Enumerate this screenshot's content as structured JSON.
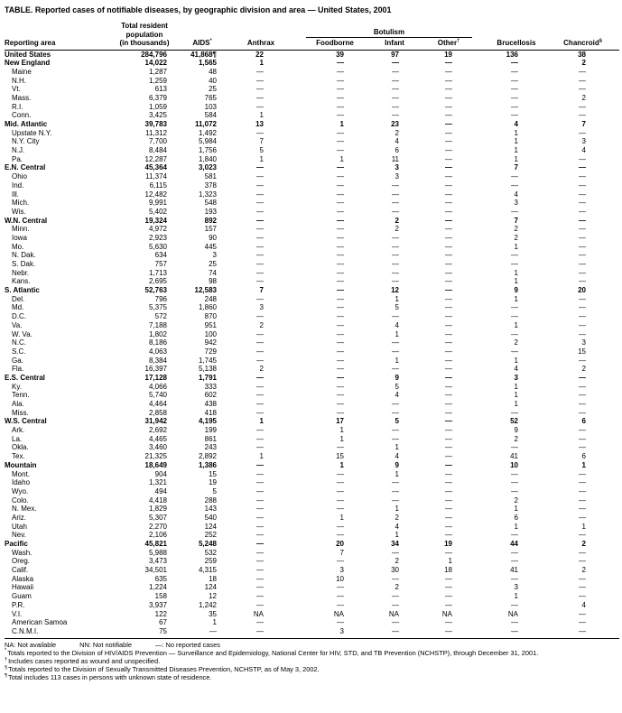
{
  "title": "TABLE. Reported cases of notifiable diseases, by geographic division and area — United States, 2001",
  "table": {
    "headers": {
      "reporting_area": "Reporting area",
      "population_line1": "Total resident",
      "population_line2": "population",
      "population_line3": "(in thousands)",
      "aids": "AIDS",
      "aids_marker": "*",
      "anthrax": "Anthrax",
      "botulism": "Botulism",
      "foodborne": "Foodborne",
      "infant": "Infant",
      "other": "Other",
      "other_marker": "†",
      "brucellosis": "Brucellosis",
      "chancroid": "Chancroid",
      "chancroid_marker": "§"
    },
    "rows": [
      {
        "area": "United States",
        "level": "us",
        "values": [
          "284,796",
          "41,868¶",
          "22",
          "39",
          "97",
          "19",
          "136",
          "38"
        ]
      },
      {
        "area": "New England",
        "level": "division",
        "values": [
          "14,022",
          "1,565",
          "1",
          "—",
          "—",
          "—",
          "—",
          "2"
        ]
      },
      {
        "area": "Maine",
        "level": "state",
        "values": [
          "1,287",
          "48",
          "—",
          "—",
          "—",
          "—",
          "—",
          "—"
        ]
      },
      {
        "area": "N.H.",
        "level": "state",
        "values": [
          "1,259",
          "40",
          "—",
          "—",
          "—",
          "—",
          "—",
          "—"
        ]
      },
      {
        "area": "Vt.",
        "level": "state",
        "values": [
          "613",
          "25",
          "—",
          "—",
          "—",
          "—",
          "—",
          "—"
        ]
      },
      {
        "area": "Mass.",
        "level": "state",
        "values": [
          "6,379",
          "765",
          "—",
          "—",
          "—",
          "—",
          "—",
          "2"
        ]
      },
      {
        "area": "R.I.",
        "level": "state",
        "values": [
          "1,059",
          "103",
          "—",
          "—",
          "—",
          "—",
          "—",
          "—"
        ]
      },
      {
        "area": "Conn.",
        "level": "state",
        "values": [
          "3,425",
          "584",
          "1",
          "—",
          "—",
          "—",
          "—",
          "—"
        ]
      },
      {
        "area": "Mid. Atlantic",
        "level": "division",
        "values": [
          "39,783",
          "11,072",
          "13",
          "1",
          "23",
          "—",
          "4",
          "7"
        ]
      },
      {
        "area": "Upstate N.Y.",
        "level": "state",
        "values": [
          "11,312",
          "1,492",
          "—",
          "—",
          "2",
          "—",
          "1",
          "—"
        ]
      },
      {
        "area": "N.Y. City",
        "level": "state",
        "values": [
          "7,700",
          "5,984",
          "7",
          "—",
          "4",
          "—",
          "1",
          "3"
        ]
      },
      {
        "area": "N.J.",
        "level": "state",
        "values": [
          "8,484",
          "1,756",
          "5",
          "—",
          "6",
          "—",
          "1",
          "4"
        ]
      },
      {
        "area": "Pa.",
        "level": "state",
        "values": [
          "12,287",
          "1,840",
          "1",
          "1",
          "11",
          "—",
          "1",
          "—"
        ]
      },
      {
        "area": "E.N. Central",
        "level": "division",
        "values": [
          "45,364",
          "3,023",
          "—",
          "—",
          "3",
          "—",
          "7",
          "—"
        ]
      },
      {
        "area": "Ohio",
        "level": "state",
        "values": [
          "11,374",
          "581",
          "—",
          "—",
          "3",
          "—",
          "—",
          "—"
        ]
      },
      {
        "area": "Ind.",
        "level": "state",
        "values": [
          "6,115",
          "378",
          "—",
          "—",
          "—",
          "—",
          "—",
          "—"
        ]
      },
      {
        "area": "Ill.",
        "level": "state",
        "values": [
          "12,482",
          "1,323",
          "—",
          "—",
          "—",
          "—",
          "4",
          "—"
        ]
      },
      {
        "area": "Mich.",
        "level": "state",
        "values": [
          "9,991",
          "548",
          "—",
          "—",
          "—",
          "—",
          "3",
          "—"
        ]
      },
      {
        "area": "Wis.",
        "level": "state",
        "values": [
          "5,402",
          "193",
          "—",
          "—",
          "—",
          "—",
          "—",
          "—"
        ]
      },
      {
        "area": "W.N. Central",
        "level": "division",
        "values": [
          "19,324",
          "892",
          "—",
          "—",
          "2",
          "—",
          "7",
          "—"
        ]
      },
      {
        "area": "Minn.",
        "level": "state",
        "values": [
          "4,972",
          "157",
          "—",
          "—",
          "2",
          "—",
          "2",
          "—"
        ]
      },
      {
        "area": "Iowa",
        "level": "state",
        "values": [
          "2,923",
          "90",
          "—",
          "—",
          "—",
          "—",
          "2",
          "—"
        ]
      },
      {
        "area": "Mo.",
        "level": "state",
        "values": [
          "5,630",
          "445",
          "—",
          "—",
          "—",
          "—",
          "1",
          "—"
        ]
      },
      {
        "area": "N. Dak.",
        "level": "state",
        "values": [
          "634",
          "3",
          "—",
          "—",
          "—",
          "—",
          "—",
          "—"
        ]
      },
      {
        "area": "S. Dak.",
        "level": "state",
        "values": [
          "757",
          "25",
          "—",
          "—",
          "—",
          "—",
          "—",
          "—"
        ]
      },
      {
        "area": "Nebr.",
        "level": "state",
        "values": [
          "1,713",
          "74",
          "—",
          "—",
          "—",
          "—",
          "1",
          "—"
        ]
      },
      {
        "area": "Kans.",
        "level": "state",
        "values": [
          "2,695",
          "98",
          "—",
          "—",
          "—",
          "—",
          "1",
          "—"
        ]
      },
      {
        "area": "S. Atlantic",
        "level": "division",
        "values": [
          "52,763",
          "12,583",
          "7",
          "—",
          "12",
          "—",
          "9",
          "20"
        ]
      },
      {
        "area": "Del.",
        "level": "state",
        "values": [
          "796",
          "248",
          "—",
          "—",
          "1",
          "—",
          "1",
          "—"
        ]
      },
      {
        "area": "Md.",
        "level": "state",
        "values": [
          "5,375",
          "1,860",
          "3",
          "—",
          "5",
          "—",
          "—",
          "—"
        ]
      },
      {
        "area": "D.C.",
        "level": "state",
        "values": [
          "572",
          "870",
          "—",
          "—",
          "—",
          "—",
          "—",
          "—"
        ]
      },
      {
        "area": "Va.",
        "level": "state",
        "values": [
          "7,188",
          "951",
          "2",
          "—",
          "4",
          "—",
          "1",
          "—"
        ]
      },
      {
        "area": "W. Va.",
        "level": "state",
        "values": [
          "1,802",
          "100",
          "—",
          "—",
          "1",
          "—",
          "—",
          "—"
        ]
      },
      {
        "area": "N.C.",
        "level": "state",
        "values": [
          "8,186",
          "942",
          "—",
          "—",
          "—",
          "—",
          "2",
          "3"
        ]
      },
      {
        "area": "S.C.",
        "level": "state",
        "values": [
          "4,063",
          "729",
          "—",
          "—",
          "—",
          "—",
          "—",
          "15"
        ]
      },
      {
        "area": "Ga.",
        "level": "state",
        "values": [
          "8,384",
          "1,745",
          "—",
          "—",
          "1",
          "—",
          "1",
          "—"
        ]
      },
      {
        "area": "Fla.",
        "level": "state",
        "values": [
          "16,397",
          "5,138",
          "2",
          "—",
          "—",
          "—",
          "4",
          "2"
        ]
      },
      {
        "area": "E.S. Central",
        "level": "division",
        "values": [
          "17,128",
          "1,791",
          "—",
          "—",
          "9",
          "—",
          "3",
          "—"
        ]
      },
      {
        "area": "Ky.",
        "level": "state",
        "values": [
          "4,066",
          "333",
          "—",
          "—",
          "5",
          "—",
          "1",
          "—"
        ]
      },
      {
        "area": "Tenn.",
        "level": "state",
        "values": [
          "5,740",
          "602",
          "—",
          "—",
          "4",
          "—",
          "1",
          "—"
        ]
      },
      {
        "area": "Ala.",
        "level": "state",
        "values": [
          "4,464",
          "438",
          "—",
          "—",
          "—",
          "—",
          "1",
          "—"
        ]
      },
      {
        "area": "Miss.",
        "level": "state",
        "values": [
          "2,858",
          "418",
          "—",
          "—",
          "—",
          "—",
          "—",
          "—"
        ]
      },
      {
        "area": "W.S. Central",
        "level": "division",
        "values": [
          "31,942",
          "4,195",
          "1",
          "17",
          "5",
          "—",
          "52",
          "6"
        ]
      },
      {
        "area": "Ark.",
        "level": "state",
        "values": [
          "2,692",
          "199",
          "—",
          "1",
          "—",
          "—",
          "9",
          "—"
        ]
      },
      {
        "area": "La.",
        "level": "state",
        "values": [
          "4,465",
          "861",
          "—",
          "1",
          "—",
          "—",
          "2",
          "—"
        ]
      },
      {
        "area": "Okla.",
        "level": "state",
        "values": [
          "3,460",
          "243",
          "—",
          "—",
          "1",
          "—",
          "—",
          "—"
        ]
      },
      {
        "area": "Tex.",
        "level": "state",
        "values": [
          "21,325",
          "2,892",
          "1",
          "15",
          "4",
          "—",
          "41",
          "6"
        ]
      },
      {
        "area": "Mountain",
        "level": "division",
        "values": [
          "18,649",
          "1,386",
          "—",
          "1",
          "9",
          "—",
          "10",
          "1"
        ]
      },
      {
        "area": "Mont.",
        "level": "state",
        "values": [
          "904",
          "15",
          "—",
          "—",
          "1",
          "—",
          "—",
          "—"
        ]
      },
      {
        "area": "Idaho",
        "level": "state",
        "values": [
          "1,321",
          "19",
          "—",
          "—",
          "—",
          "—",
          "—",
          "—"
        ]
      },
      {
        "area": "Wyo.",
        "level": "state",
        "values": [
          "494",
          "5",
          "—",
          "—",
          "—",
          "—",
          "—",
          "—"
        ]
      },
      {
        "area": "Colo.",
        "level": "state",
        "values": [
          "4,418",
          "288",
          "—",
          "—",
          "—",
          "—",
          "2",
          "—"
        ]
      },
      {
        "area": "N. Mex.",
        "level": "state",
        "values": [
          "1,829",
          "143",
          "—",
          "—",
          "1",
          "—",
          "1",
          "—"
        ]
      },
      {
        "area": "Ariz.",
        "level": "state",
        "values": [
          "5,307",
          "540",
          "—",
          "1",
          "2",
          "—",
          "6",
          "—"
        ]
      },
      {
        "area": "Utah",
        "level": "state",
        "values": [
          "2,270",
          "124",
          "—",
          "—",
          "4",
          "—",
          "1",
          "1"
        ]
      },
      {
        "area": "Nev.",
        "level": "state",
        "values": [
          "2,106",
          "252",
          "—",
          "—",
          "1",
          "—",
          "—",
          "—"
        ]
      },
      {
        "area": "Pacific",
        "level": "division",
        "values": [
          "45,821",
          "5,248",
          "—",
          "20",
          "34",
          "19",
          "44",
          "2"
        ]
      },
      {
        "area": "Wash.",
        "level": "state",
        "values": [
          "5,988",
          "532",
          "—",
          "7",
          "—",
          "—",
          "—",
          "—"
        ]
      },
      {
        "area": "Oreg.",
        "level": "state",
        "values": [
          "3,473",
          "259",
          "—",
          "—",
          "2",
          "1",
          "—",
          "—"
        ]
      },
      {
        "area": "Calif.",
        "level": "state",
        "values": [
          "34,501",
          "4,315",
          "—",
          "3",
          "30",
          "18",
          "41",
          "2"
        ]
      },
      {
        "area": "Alaska",
        "level": "state",
        "values": [
          "635",
          "18",
          "—",
          "10",
          "—",
          "—",
          "—",
          "—"
        ]
      },
      {
        "area": "Hawaii",
        "level": "state",
        "values": [
          "1,224",
          "124",
          "—",
          "—",
          "2",
          "—",
          "3",
          "—"
        ]
      },
      {
        "area": "Guam",
        "level": "territory",
        "values": [
          "158",
          "12",
          "—",
          "—",
          "—",
          "—",
          "1",
          "—"
        ]
      },
      {
        "area": "P.R.",
        "level": "territory",
        "values": [
          "3,937",
          "1,242",
          "—",
          "—",
          "—",
          "—",
          "—",
          "4"
        ]
      },
      {
        "area": "V.I.",
        "level": "territory",
        "values": [
          "122",
          "35",
          "NA",
          "NA",
          "NA",
          "NA",
          "NA",
          "—"
        ]
      },
      {
        "area": "American Samoa",
        "level": "territory",
        "values": [
          "67",
          "1",
          "—",
          "—",
          "—",
          "—",
          "—",
          "—"
        ]
      },
      {
        "area": "C.N.M.I.",
        "level": "territory",
        "values": [
          "75",
          "—",
          "—",
          "3",
          "—",
          "—",
          "—",
          "—"
        ]
      }
    ]
  },
  "legend": [
    "NA: Not available",
    "NN: Not notifiable",
    "—: No reported cases"
  ],
  "footnotes": [
    {
      "marker": "*",
      "text": "Totals reported to the Division of HIV/AIDS Prevention — Surveillance and Epidemiology, National Center for HIV, STD, and TB Prevention (NCHSTP), through December 31, 2001."
    },
    {
      "marker": "†",
      "text": "Includes cases reported as wound and unspecified."
    },
    {
      "marker": "§",
      "text": "Totals reported to the Division of Sexually Transmitted Diseases Prevention, NCHSTP, as of May 3, 2002."
    },
    {
      "marker": "¶",
      "text": "Total includes 113 cases in persons with unknown state of residence."
    }
  ]
}
